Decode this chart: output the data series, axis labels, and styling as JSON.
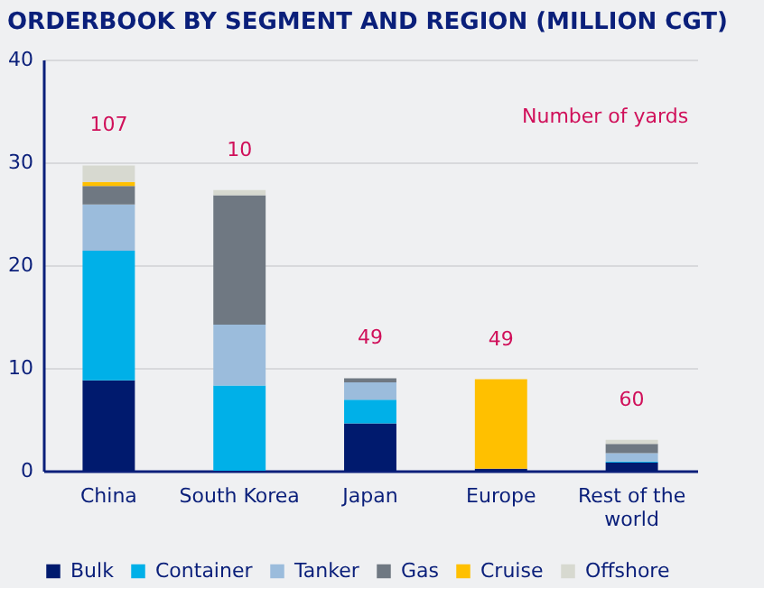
{
  "chart_data": {
    "type": "bar",
    "title": "ORDERBOOK BY SEGMENT AND REGION (MILLION CGT)",
    "categories": [
      "China",
      "South Korea",
      "Japan",
      "Europe",
      "Rest of the world"
    ],
    "stacked": true,
    "series": [
      {
        "name": "Bulk",
        "color": "#001a6e",
        "values": [
          8.8,
          0,
          4.6,
          0.2,
          0.8
        ]
      },
      {
        "name": "Container",
        "color": "#00b0e8",
        "values": [
          12.6,
          8.3,
          2.3,
          0,
          0.1
        ]
      },
      {
        "name": "Tanker",
        "color": "#9bbcdc",
        "values": [
          4.5,
          5.9,
          1.7,
          0,
          0.8
        ]
      },
      {
        "name": "Gas",
        "color": "#6f7882",
        "values": [
          1.8,
          12.6,
          0.4,
          0,
          0.9
        ]
      },
      {
        "name": "Cruise",
        "color": "#ffc000",
        "values": [
          0.4,
          0,
          0,
          8.7,
          0
        ]
      },
      {
        "name": "Offshore",
        "color": "#d7d9d0",
        "values": [
          1.6,
          0.5,
          0,
          0,
          0.4
        ]
      }
    ],
    "ylim": [
      0,
      40
    ],
    "yticks": [
      0,
      10,
      20,
      30,
      40
    ],
    "grid": "y",
    "legend": "bottom",
    "annotations": [
      "107",
      "10",
      "49",
      "49",
      "60",
      "Number of yards"
    ]
  }
}
